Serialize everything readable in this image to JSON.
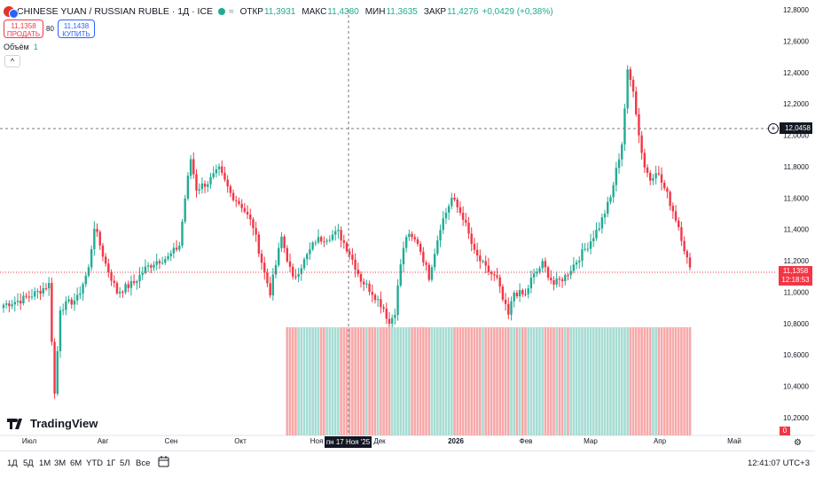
{
  "header": {
    "symbol": "CHINESE YUAN / RUSSIAN RUBLE · 1Д · ICE",
    "status_icon": "market-open-dot",
    "wave_icon": "≈",
    "open_label": "ОТКР",
    "open_value": "11,3931",
    "high_label": "МАКС",
    "high_value": "11,4380",
    "low_label": "МИН",
    "low_value": "11,3635",
    "close_label": "ЗАКР",
    "close_value": "11,4276",
    "change_value": "+0,0429 (+0,38%)"
  },
  "trade": {
    "sell_price": "11,1358",
    "sell_label": "ПРОДАТЬ",
    "spread": "80",
    "buy_price": "11,1438",
    "buy_label": "КУПИТЬ"
  },
  "volume": {
    "label": "Объём",
    "value": "1"
  },
  "collapse_icon": "^",
  "logo_text": "TradingView",
  "axis": {
    "price_ticks": [
      "12,8000",
      "12,6000",
      "12,4000",
      "12,2000",
      "12,0000",
      "11,8000",
      "11,6000",
      "11,4000",
      "11,2000",
      "11,0000",
      "10,8000",
      "10,6000",
      "10,4000",
      "10,2000"
    ],
    "time_ticks": [
      "Июл",
      "Авг",
      "Сен",
      "Окт",
      "Ноя",
      "Дек",
      "2026",
      "Фев",
      "Мар",
      "Апр",
      "Май"
    ]
  },
  "crosshair": {
    "date_label": "пн 17 Ноя '25",
    "price_label": "12,0458"
  },
  "last_price": {
    "price": "11,1358",
    "countdown": "12:18:53"
  },
  "volume_zero": "0",
  "timeframes": [
    "1Д",
    "5Д",
    "1М",
    "3М",
    "6М",
    "YTD",
    "1Г",
    "5Л",
    "Все"
  ],
  "clock": "12:41:07 UTC+3",
  "colors": {
    "up": "#22ab94",
    "down": "#f23645",
    "vol_up": "#a6dcd3",
    "vol_down": "#f7a9a9",
    "accent": "#2962ff"
  },
  "chart_data": {
    "type": "candlestick",
    "y_range": [
      10.1,
      12.85
    ],
    "x_labels": [
      "Июл",
      "Авг",
      "Сен",
      "Окт",
      "Ноя",
      "Дек",
      "2026",
      "Фев",
      "Мар",
      "Апр",
      "Май"
    ],
    "anchors": [
      [
        0,
        10.92
      ],
      [
        6,
        10.95
      ],
      [
        12,
        11.0
      ],
      [
        16,
        11.05
      ],
      [
        18,
        10.35
      ],
      [
        20,
        10.9
      ],
      [
        26,
        10.96
      ],
      [
        30,
        11.15
      ],
      [
        32,
        11.42
      ],
      [
        36,
        11.18
      ],
      [
        40,
        11.0
      ],
      [
        46,
        11.06
      ],
      [
        50,
        11.15
      ],
      [
        54,
        11.2
      ],
      [
        58,
        11.22
      ],
      [
        62,
        11.3
      ],
      [
        64,
        11.6
      ],
      [
        66,
        11.85
      ],
      [
        68,
        11.66
      ],
      [
        72,
        11.7
      ],
      [
        76,
        11.78
      ],
      [
        80,
        11.63
      ],
      [
        84,
        11.55
      ],
      [
        88,
        11.42
      ],
      [
        92,
        11.12
      ],
      [
        94,
        11.0
      ],
      [
        98,
        11.35
      ],
      [
        102,
        11.08
      ],
      [
        106,
        11.2
      ],
      [
        110,
        11.33
      ],
      [
        114,
        11.35
      ],
      [
        118,
        11.38
      ],
      [
        122,
        11.25
      ],
      [
        126,
        11.08
      ],
      [
        130,
        11.0
      ],
      [
        134,
        10.9
      ],
      [
        136,
        10.8
      ],
      [
        138,
        10.88
      ],
      [
        140,
        11.18
      ],
      [
        142,
        11.36
      ],
      [
        146,
        11.32
      ],
      [
        150,
        11.1
      ],
      [
        154,
        11.42
      ],
      [
        158,
        11.6
      ],
      [
        162,
        11.48
      ],
      [
        166,
        11.25
      ],
      [
        170,
        11.15
      ],
      [
        174,
        11.08
      ],
      [
        176,
        10.95
      ],
      [
        178,
        10.85
      ],
      [
        180,
        11.0
      ],
      [
        184,
        10.98
      ],
      [
        186,
        11.08
      ],
      [
        190,
        11.18
      ],
      [
        194,
        11.05
      ],
      [
        198,
        11.1
      ],
      [
        202,
        11.2
      ],
      [
        206,
        11.3
      ],
      [
        210,
        11.42
      ],
      [
        214,
        11.6
      ],
      [
        218,
        11.95
      ],
      [
        220,
        12.4
      ],
      [
        222,
        12.3
      ],
      [
        224,
        12.0
      ],
      [
        226,
        11.8
      ],
      [
        228,
        11.72
      ],
      [
        230,
        11.78
      ],
      [
        232,
        11.7
      ],
      [
        234,
        11.62
      ],
      [
        238,
        11.42
      ],
      [
        240,
        11.28
      ],
      [
        242,
        11.14
      ]
    ],
    "volume_start_index": 100,
    "volume_level": "1"
  }
}
